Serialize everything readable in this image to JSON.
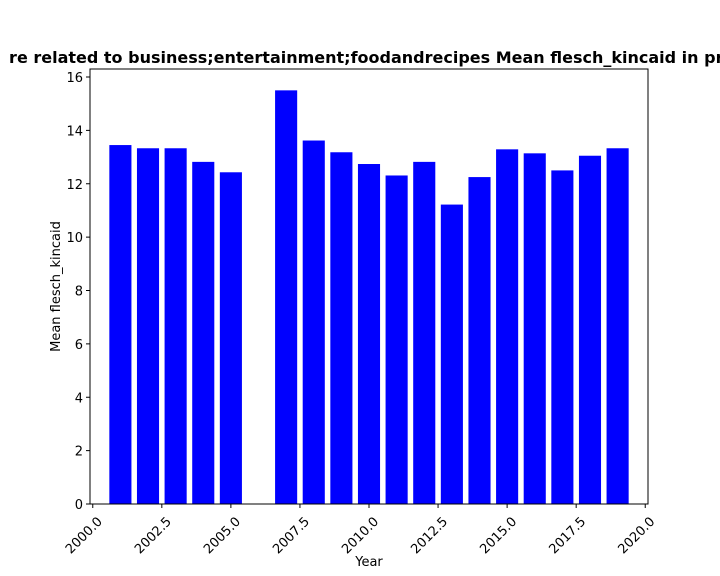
{
  "chart_data": {
    "type": "bar",
    "title": "re related to business;entertainment;foodandrecipes Mean flesch_kincaid in pri",
    "xlabel": "Year",
    "ylabel": "Mean flesch_kincaid",
    "x": [
      2001,
      2002,
      2003,
      2004,
      2005,
      2007,
      2008,
      2009,
      2010,
      2011,
      2012,
      2013,
      2014,
      2015,
      2016,
      2017,
      2018,
      2019
    ],
    "values": [
      13.45,
      13.33,
      13.33,
      12.82,
      12.43,
      15.5,
      13.62,
      13.18,
      12.74,
      12.31,
      12.82,
      11.22,
      12.25,
      13.29,
      13.14,
      12.5,
      13.05,
      13.33
    ],
    "xlim": [
      1999.9,
      2020.1
    ],
    "ylim": [
      0,
      16.3
    ],
    "xticks": [
      2000.0,
      2002.5,
      2005.0,
      2007.5,
      2010.0,
      2012.5,
      2015.0,
      2017.5,
      2020.0
    ],
    "xtick_labels": [
      "2000.0",
      "2002.5",
      "2005.0",
      "2007.5",
      "2010.0",
      "2012.5",
      "2015.0",
      "2017.5",
      "2020.0"
    ],
    "yticks": [
      0,
      2,
      4,
      6,
      8,
      10,
      12,
      14,
      16
    ],
    "ytick_labels": [
      "0",
      "2",
      "4",
      "6",
      "8",
      "10",
      "12",
      "14",
      "16"
    ],
    "bar_width": 0.8,
    "bar_color": "#0000ff",
    "grid": false,
    "legend": "none"
  }
}
